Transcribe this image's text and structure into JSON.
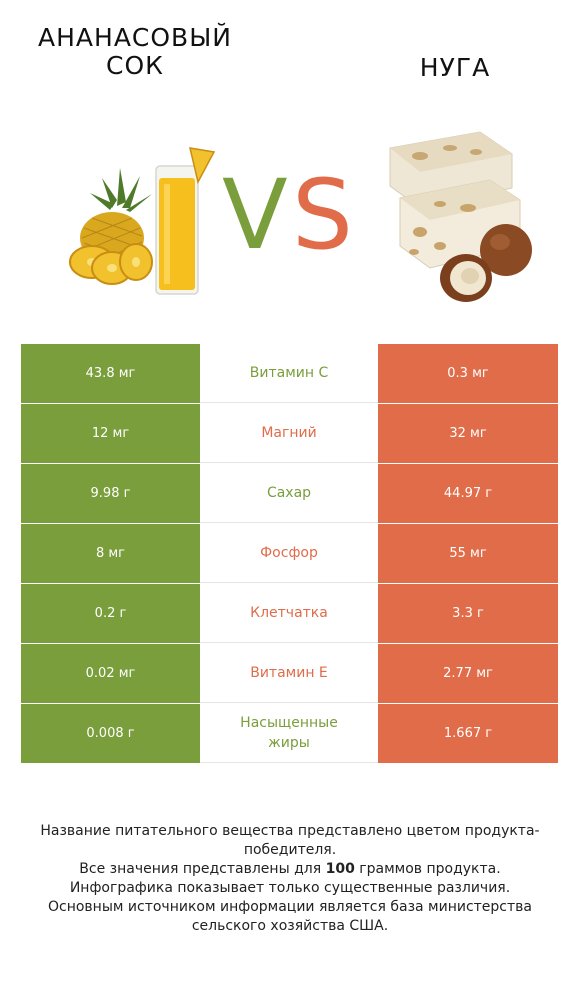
{
  "titles": {
    "left": "АНАНАСОВЫЙ СОК",
    "right": "НУГА"
  },
  "vs": {
    "v": "V",
    "s": "S"
  },
  "colors": {
    "left_winner": "#7a9e3b",
    "right_winner": "#e06c4a"
  },
  "rows": [
    {
      "left": "43.8 мг",
      "nutrient": "Витамин C",
      "right": "0.3 мг",
      "winner": "left"
    },
    {
      "left": "12 мг",
      "nutrient": "Магний",
      "right": "32 мг",
      "winner": "right"
    },
    {
      "left": "9.98 г",
      "nutrient": "Сахар",
      "right": "44.97 г",
      "winner": "left"
    },
    {
      "left": "8 мг",
      "nutrient": "Фосфор",
      "right": "55 мг",
      "winner": "right"
    },
    {
      "left": "0.2 г",
      "nutrient": "Клетчатка",
      "right": "3.3 г",
      "winner": "right"
    },
    {
      "left": "0.02 мг",
      "nutrient": "Витамин E",
      "right": "2.77 мг",
      "winner": "right"
    },
    {
      "left": "0.008 г",
      "nutrient": "Насыщенные жиры",
      "right": "1.667 г",
      "winner": "left"
    }
  ],
  "footnote": {
    "line1": "Название питательного вещества представлено цветом продукта-победителя.",
    "line2_prefix": "Все значения представлены для ",
    "line2_bold": "100",
    "line2_suffix": " граммов продукта.",
    "line3": "Инфографика показывает только существенные различия.",
    "line4": "Основным источником информации является база министерства сельского хозяйства США."
  }
}
